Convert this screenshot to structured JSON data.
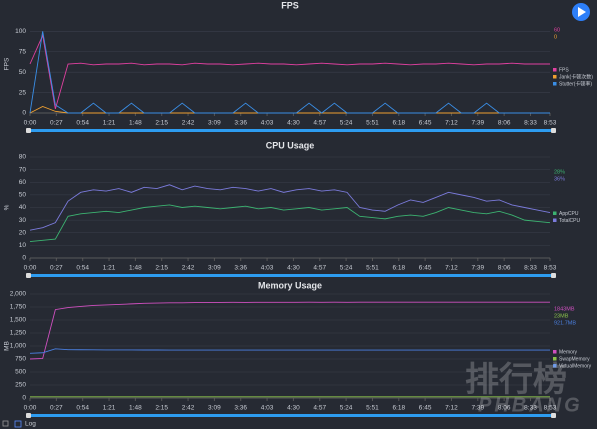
{
  "chart_data": [
    {
      "type": "line",
      "title": "FPS",
      "y_label": "FPS",
      "xlim": [
        0,
        533
      ],
      "ylim": [
        0,
        120
      ],
      "grid": true,
      "xticks": [
        {
          "value": 0,
          "label": "0:00"
        },
        {
          "value": 27,
          "label": "0:27"
        },
        {
          "value": 54,
          "label": "0:54"
        },
        {
          "value": 81,
          "label": "1:21"
        },
        {
          "value": 108,
          "label": "1:48"
        },
        {
          "value": 135,
          "label": "2:15"
        },
        {
          "value": 162,
          "label": "2:42"
        },
        {
          "value": 189,
          "label": "3:09"
        },
        {
          "value": 216,
          "label": "3:36"
        },
        {
          "value": 243,
          "label": "4:03"
        },
        {
          "value": 270,
          "label": "4:30"
        },
        {
          "value": 297,
          "label": "4:57"
        },
        {
          "value": 324,
          "label": "5:24"
        },
        {
          "value": 351,
          "label": "5:51"
        },
        {
          "value": 378,
          "label": "6:18"
        },
        {
          "value": 405,
          "label": "6:45"
        },
        {
          "value": 432,
          "label": "7:12"
        },
        {
          "value": 459,
          "label": "7:39"
        },
        {
          "value": 486,
          "label": "8:06"
        },
        {
          "value": 513,
          "label": "8:33"
        },
        {
          "value": 533,
          "label": "8:53"
        }
      ],
      "yticks": [
        0,
        25,
        50,
        75,
        100
      ],
      "x": [
        0,
        13,
        26,
        39,
        52,
        65,
        78,
        91,
        104,
        117,
        130,
        143,
        156,
        169,
        182,
        195,
        208,
        221,
        234,
        247,
        260,
        273,
        286,
        299,
        312,
        325,
        338,
        351,
        364,
        377,
        390,
        403,
        416,
        429,
        442,
        455,
        468,
        481,
        494,
        507,
        520,
        533
      ],
      "series": [
        {
          "name": "FPS",
          "color": "#e040a0",
          "readout": "60",
          "values": [
            60,
            95,
            5,
            60,
            61,
            59,
            60,
            60,
            61,
            59,
            60,
            60,
            59,
            61,
            60,
            60,
            59,
            60,
            61,
            60,
            60,
            59,
            60,
            61,
            60,
            59,
            60,
            60,
            61,
            60,
            59,
            60,
            60,
            61,
            60,
            59,
            60,
            60,
            61,
            60,
            60,
            60
          ]
        },
        {
          "name": "Jank(卡顿次数)",
          "color": "#f0a030",
          "readout": "0",
          "values": [
            0,
            8,
            2,
            0,
            0,
            0,
            0,
            0,
            0,
            0,
            0,
            0,
            0,
            0,
            0,
            0,
            0,
            0,
            0,
            0,
            0,
            0,
            0,
            0,
            0,
            0,
            0,
            0,
            0,
            0,
            0,
            0,
            0,
            0,
            0,
            0,
            0,
            0,
            0,
            0,
            0,
            0
          ]
        },
        {
          "name": "Stutter(卡顿率)",
          "color": "#3a8ee6",
          "values": [
            0,
            100,
            10,
            0,
            0,
            12,
            0,
            0,
            12,
            0,
            0,
            0,
            12,
            0,
            0,
            0,
            0,
            12,
            0,
            0,
            0,
            0,
            12,
            0,
            12,
            0,
            0,
            0,
            12,
            0,
            0,
            0,
            0,
            12,
            0,
            0,
            12,
            0,
            0,
            0,
            0,
            0
          ]
        }
      ]
    },
    {
      "type": "line",
      "title": "CPU Usage",
      "y_label": "%",
      "xlim": [
        0,
        533
      ],
      "ylim": [
        0,
        80
      ],
      "grid": true,
      "xticks": [
        {
          "value": 0,
          "label": "0:00"
        },
        {
          "value": 27,
          "label": "0:27"
        },
        {
          "value": 54,
          "label": "0:54"
        },
        {
          "value": 81,
          "label": "1:21"
        },
        {
          "value": 108,
          "label": "1:48"
        },
        {
          "value": 135,
          "label": "2:15"
        },
        {
          "value": 162,
          "label": "2:42"
        },
        {
          "value": 189,
          "label": "3:09"
        },
        {
          "value": 216,
          "label": "3:36"
        },
        {
          "value": 243,
          "label": "4:03"
        },
        {
          "value": 270,
          "label": "4:30"
        },
        {
          "value": 297,
          "label": "4:57"
        },
        {
          "value": 324,
          "label": "5:24"
        },
        {
          "value": 351,
          "label": "5:51"
        },
        {
          "value": 378,
          "label": "6:18"
        },
        {
          "value": 405,
          "label": "6:45"
        },
        {
          "value": 432,
          "label": "7:12"
        },
        {
          "value": 459,
          "label": "7:39"
        },
        {
          "value": 486,
          "label": "8:06"
        },
        {
          "value": 513,
          "label": "8:33"
        },
        {
          "value": 533,
          "label": "8:53"
        }
      ],
      "yticks": [
        0,
        10,
        20,
        30,
        40,
        50,
        60,
        70,
        80
      ],
      "x": [
        0,
        13,
        26,
        39,
        52,
        65,
        78,
        91,
        104,
        117,
        130,
        143,
        156,
        169,
        182,
        195,
        208,
        221,
        234,
        247,
        260,
        273,
        286,
        299,
        312,
        325,
        338,
        351,
        364,
        377,
        390,
        403,
        416,
        429,
        442,
        455,
        468,
        481,
        494,
        507,
        520,
        533
      ],
      "series": [
        {
          "name": "AppCPU",
          "color": "#3cb371",
          "readout": "28%",
          "values": [
            13,
            14,
            15,
            33,
            35,
            36,
            37,
            36,
            38,
            40,
            41,
            42,
            40,
            41,
            40,
            39,
            40,
            41,
            39,
            40,
            38,
            39,
            40,
            38,
            39,
            40,
            33,
            32,
            31,
            33,
            34,
            33,
            36,
            40,
            38,
            36,
            35,
            37,
            34,
            30,
            29,
            28
          ]
        },
        {
          "name": "TotalCPU",
          "color": "#7b7bdc",
          "readout": "36%",
          "values": [
            22,
            24,
            28,
            45,
            52,
            54,
            53,
            55,
            52,
            56,
            55,
            58,
            54,
            57,
            55,
            54,
            56,
            55,
            53,
            55,
            52,
            54,
            55,
            53,
            54,
            52,
            40,
            38,
            37,
            42,
            46,
            44,
            48,
            52,
            50,
            48,
            45,
            46,
            42,
            40,
            38,
            36
          ]
        }
      ]
    },
    {
      "type": "line",
      "title": "Memory Usage",
      "y_label": "MB",
      "xlim": [
        0,
        533
      ],
      "ylim": [
        0,
        2000
      ],
      "grid": true,
      "xticks": [
        {
          "value": 0,
          "label": "0:00"
        },
        {
          "value": 27,
          "label": "0:27"
        },
        {
          "value": 54,
          "label": "0:54"
        },
        {
          "value": 81,
          "label": "1:21"
        },
        {
          "value": 108,
          "label": "1:48"
        },
        {
          "value": 135,
          "label": "2:15"
        },
        {
          "value": 162,
          "label": "2:42"
        },
        {
          "value": 189,
          "label": "3:09"
        },
        {
          "value": 216,
          "label": "3:36"
        },
        {
          "value": 243,
          "label": "4:03"
        },
        {
          "value": 270,
          "label": "4:30"
        },
        {
          "value": 297,
          "label": "4:57"
        },
        {
          "value": 324,
          "label": "5:24"
        },
        {
          "value": 351,
          "label": "5:51"
        },
        {
          "value": 378,
          "label": "6:18"
        },
        {
          "value": 405,
          "label": "6:45"
        },
        {
          "value": 432,
          "label": "7:12"
        },
        {
          "value": 459,
          "label": "7:39"
        },
        {
          "value": 486,
          "label": "8:06"
        },
        {
          "value": 513,
          "label": "8:33"
        },
        {
          "value": 533,
          "label": "8:53"
        }
      ],
      "yticks": [
        0,
        250,
        500,
        750,
        {
          "value": 1000,
          "label": "1,000"
        },
        {
          "value": 1250,
          "label": "1,250"
        },
        {
          "value": 1500,
          "label": "1,500"
        },
        {
          "value": 1750,
          "label": "1,750"
        },
        {
          "value": 2000,
          "label": "2,000"
        }
      ],
      "x": [
        0,
        13,
        26,
        39,
        52,
        65,
        78,
        91,
        104,
        117,
        130,
        143,
        156,
        169,
        182,
        195,
        208,
        221,
        234,
        247,
        260,
        273,
        286,
        299,
        312,
        325,
        338,
        351,
        364,
        377,
        390,
        403,
        416,
        429,
        442,
        455,
        468,
        481,
        494,
        507,
        520,
        533
      ],
      "series": [
        {
          "name": "Memory",
          "color": "#d050c0",
          "readout": "1843MB",
          "values": [
            750,
            760,
            1700,
            1740,
            1760,
            1780,
            1790,
            1800,
            1810,
            1820,
            1825,
            1830,
            1830,
            1835,
            1835,
            1838,
            1840,
            1838,
            1840,
            1840,
            1841,
            1841,
            1842,
            1840,
            1842,
            1841,
            1842,
            1843,
            1842,
            1843,
            1842,
            1843,
            1843,
            1842,
            1843,
            1843,
            1843,
            1843,
            1842,
            1843,
            1843,
            1843
          ]
        },
        {
          "name": "SwapMemory",
          "color": "#8bc34a",
          "readout": "23MB",
          "values": [
            23,
            23,
            23,
            23,
            23,
            23,
            23,
            23,
            23,
            23,
            23,
            23,
            23,
            23,
            23,
            23,
            23,
            23,
            23,
            23,
            23,
            23,
            23,
            23,
            23,
            23,
            23,
            23,
            23,
            23,
            23,
            23,
            23,
            23,
            23,
            23,
            23,
            23,
            23,
            23,
            23,
            23
          ]
        },
        {
          "name": "VirtualMemory",
          "color": "#4a7fe0",
          "readout": "921.7MB",
          "values": [
            860,
            870,
            945,
            930,
            928,
            926,
            925,
            924,
            924,
            923,
            923,
            922,
            922,
            922,
            922,
            922,
            922,
            922,
            922,
            922,
            922,
            922,
            922,
            922,
            922,
            922,
            922,
            922,
            922,
            922,
            922,
            922,
            922,
            922,
            922,
            922,
            922,
            922,
            922,
            922,
            922,
            921.7
          ]
        }
      ]
    }
  ],
  "log_toggle": "Log",
  "watermark": {
    "cn": "排行榜",
    "en": "PHBANG"
  }
}
